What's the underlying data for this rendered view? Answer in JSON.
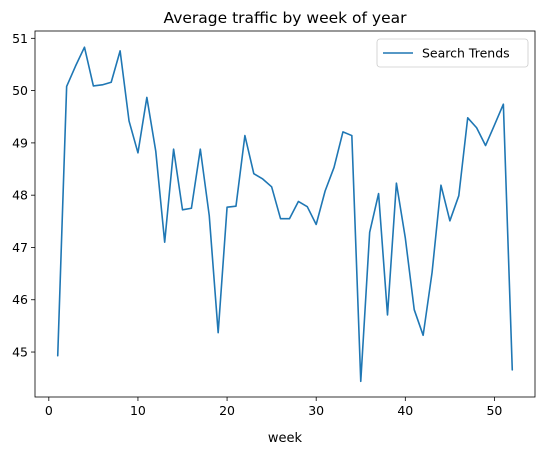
{
  "chart_data": {
    "type": "line",
    "title": "Average traffic by week of year",
    "xlabel": "week",
    "ylabel": "",
    "xlim": [
      -1.55,
      54.55
    ],
    "ylim": [
      44.14,
      51.14
    ],
    "xticks": [
      0,
      10,
      20,
      30,
      40,
      50
    ],
    "yticks": [
      45,
      46,
      47,
      48,
      49,
      50,
      51
    ],
    "grid": false,
    "legend_position": "top-right",
    "series": [
      {
        "name": "Search Trends",
        "color": "#1f77b4",
        "x": [
          1,
          2,
          3,
          4,
          5,
          6,
          7,
          8,
          9,
          10,
          11,
          12,
          13,
          14,
          15,
          16,
          17,
          18,
          19,
          20,
          21,
          22,
          23,
          24,
          25,
          26,
          27,
          28,
          29,
          30,
          31,
          32,
          33,
          34,
          35,
          36,
          37,
          38,
          39,
          40,
          41,
          42,
          43,
          44,
          45,
          46,
          47,
          48,
          49,
          50,
          51,
          52
        ],
        "y": [
          44.93,
          50.08,
          50.47,
          50.83,
          50.09,
          50.11,
          50.16,
          50.76,
          49.42,
          48.81,
          49.87,
          48.84,
          47.1,
          48.88,
          47.72,
          47.75,
          48.88,
          47.61,
          45.37,
          47.77,
          47.79,
          49.14,
          48.41,
          48.31,
          48.16,
          47.55,
          47.55,
          47.88,
          47.78,
          47.44,
          48.08,
          48.53,
          49.21,
          49.14,
          44.44,
          47.29,
          48.03,
          45.71,
          48.23,
          47.18,
          45.81,
          45.32,
          46.52,
          48.19,
          47.51,
          47.99,
          49.48,
          49.29,
          48.95,
          49.34,
          49.74,
          44.66
        ]
      }
    ]
  }
}
